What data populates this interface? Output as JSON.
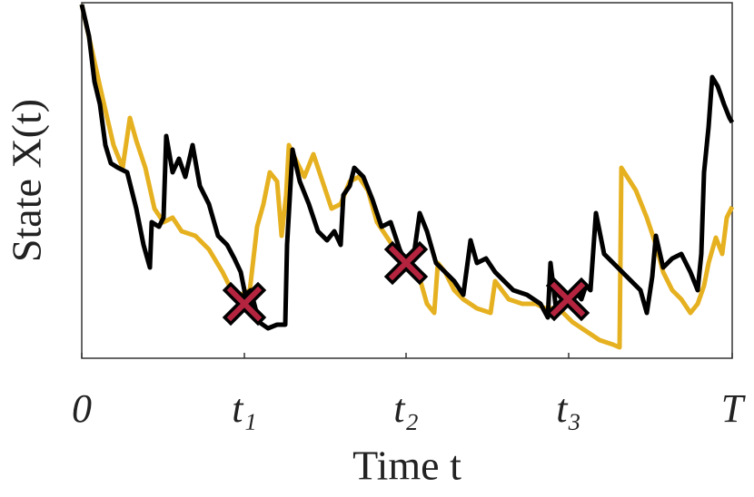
{
  "chart_data": {
    "type": "line",
    "xlabel": "Time t",
    "ylabel": "State X(t)",
    "xlim": [
      0,
      716
    ],
    "ylim": [
      0,
      392
    ],
    "xticks": [
      {
        "value": 0,
        "label": "0"
      },
      {
        "value": 179,
        "label": "t₁"
      },
      {
        "value": 357,
        "label": "t₂"
      },
      {
        "value": 536,
        "label": "t₃"
      },
      {
        "value": 716,
        "label": "T"
      }
    ],
    "series": [
      {
        "color": "#e6b120",
        "x": [
          0,
          10,
          20,
          28,
          35,
          45,
          53,
          60,
          70,
          80,
          90,
          100,
          110,
          125,
          140,
          155,
          165,
          175,
          185,
          193,
          200,
          207,
          215,
          220,
          225,
          228,
          235,
          245,
          255,
          265,
          275,
          285,
          295,
          305,
          315,
          325,
          335,
          345,
          357,
          370,
          380,
          388,
          392,
          400,
          410,
          420,
          435,
          450,
          455,
          470,
          485,
          500,
          510,
          525,
          540,
          555,
          570,
          585,
          592,
          594,
          610,
          622,
          632,
          640,
          650,
          660,
          670,
          678,
          685,
          690,
          698,
          705,
          710,
          716
        ],
        "values": [
          390,
          345,
          300,
          265,
          235,
          210,
          265,
          240,
          210,
          165,
          150,
          155,
          140,
          135,
          120,
          95,
          75,
          70,
          75,
          145,
          170,
          205,
          195,
          135,
          180,
          235,
          220,
          200,
          225,
          195,
          165,
          170,
          195,
          200,
          185,
          150,
          135,
          120,
          100,
          95,
          60,
          50,
          105,
          95,
          75,
          65,
          55,
          50,
          85,
          65,
          60,
          60,
          55,
          55,
          40,
          30,
          20,
          15,
          12,
          210,
          185,
          155,
          125,
          95,
          75,
          65,
          50,
          60,
          80,
          105,
          133,
          115,
          155,
          167
        ]
      },
      {
        "color": "#000000",
        "x": [
          0,
          8,
          14,
          20,
          26,
          32,
          40,
          50,
          60,
          68,
          75,
          77,
          85,
          90,
          93,
          100,
          107,
          114,
          122,
          130,
          140,
          150,
          160,
          168,
          175,
          180,
          186,
          195,
          205,
          215,
          224,
          226,
          232,
          240,
          250,
          260,
          270,
          278,
          285,
          288,
          295,
          300,
          310,
          320,
          330,
          340,
          350,
          357,
          365,
          372,
          380,
          390,
          400,
          410,
          420,
          428,
          435,
          445,
          455,
          465,
          475,
          490,
          505,
          513,
          516,
          522,
          535,
          543,
          550,
          555,
          560,
          566,
          575,
          585,
          595,
          605,
          615,
          622,
          628,
          632,
          640,
          650,
          660,
          670,
          678,
          682,
          685,
          690,
          694,
          700,
          707,
          713,
          716
        ],
        "values": [
          390,
          355,
          305,
          280,
          235,
          215,
          210,
          205,
          165,
          125,
          100,
          150,
          145,
          155,
          245,
          205,
          220,
          200,
          235,
          190,
          170,
          135,
          125,
          110,
          95,
          70,
          75,
          40,
          33,
          37,
          37,
          125,
          230,
          195,
          170,
          140,
          130,
          140,
          125,
          180,
          190,
          210,
          200,
          175,
          145,
          150,
          120,
          105,
          110,
          160,
          140,
          105,
          95,
          85,
          70,
          130,
          105,
          110,
          95,
          85,
          75,
          70,
          60,
          45,
          105,
          55,
          65,
          75,
          65,
          80,
          75,
          160,
          115,
          105,
          95,
          85,
          75,
          50,
          90,
          135,
          100,
          110,
          115,
          95,
          75,
          115,
          205,
          255,
          310,
          300,
          280,
          265,
          260
        ]
      }
    ],
    "markers": {
      "color": "#b5243f",
      "x": [
        179,
        357,
        535
      ],
      "values": [
        60,
        105,
        65
      ]
    }
  }
}
